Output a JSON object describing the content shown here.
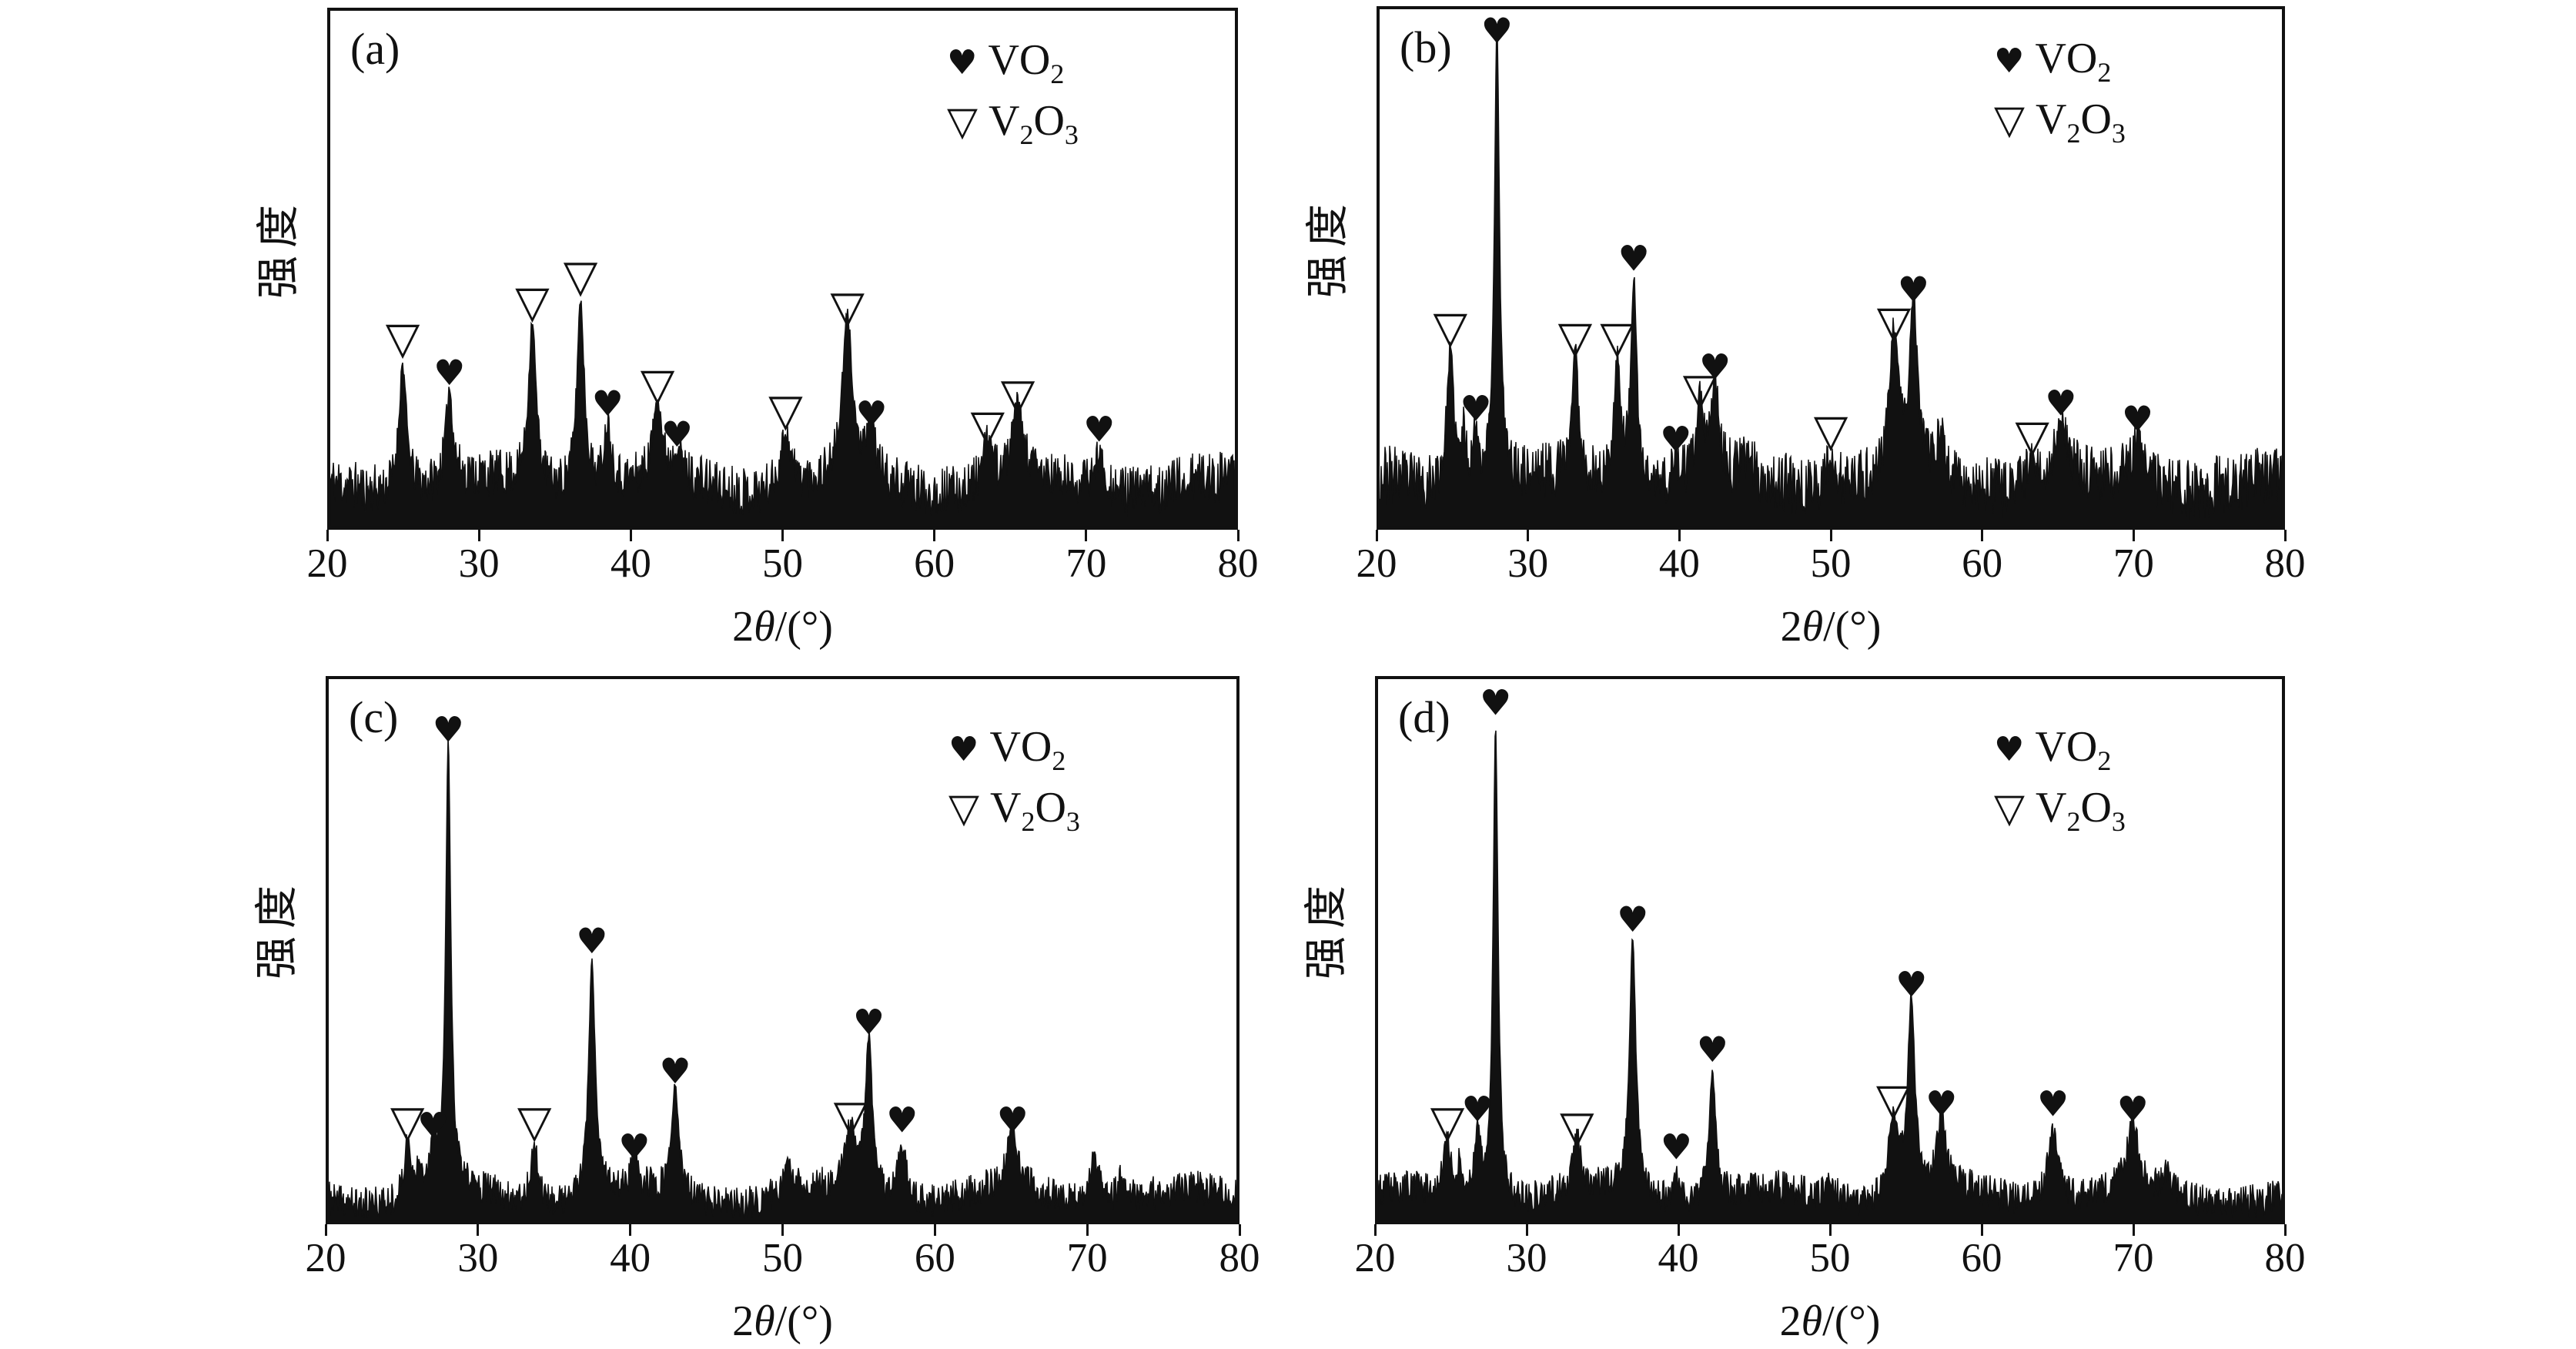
{
  "figure": {
    "background": "#ffffff",
    "ink_color": "#111111",
    "ylabel": "强度",
    "xlabel_parts": {
      "pre": "2",
      "theta": "θ",
      "post": "/(°)"
    },
    "xtick_labels": [
      "20",
      "30",
      "40",
      "50",
      "60",
      "70",
      "80"
    ],
    "legend": [
      {
        "symbol": "♥",
        "symbol_name": "heart",
        "phase": "VO2",
        "formula_parts": [
          {
            "text": "VO"
          },
          {
            "sub": "2"
          }
        ]
      },
      {
        "symbol": "▽",
        "symbol_name": "nabla",
        "phase": "V2O3",
        "formula_parts": [
          {
            "text": "V"
          },
          {
            "sub": "2"
          },
          {
            "text": "O"
          },
          {
            "sub": "3"
          }
        ]
      }
    ]
  },
  "chart_data": [
    {
      "type": "line",
      "panel": "(a)",
      "xlabel": "2θ/(°)",
      "ylabel": "强度",
      "xlim": [
        20,
        80
      ],
      "x_ticks": [
        20,
        30,
        40,
        50,
        60,
        70,
        80
      ],
      "y_ticks": "none (arbitrary intensity units)",
      "grid": false,
      "legend_position": "top-right inside",
      "noise": {
        "baseline": 0.08,
        "amplitude": 0.05,
        "seed": 11
      },
      "peaks": [
        {
          "two_theta": 24.8,
          "marker": "nabla",
          "phase": "V2O3",
          "rel_height": 0.33,
          "width_deg": 0.3
        },
        {
          "two_theta": 27.9,
          "marker": "heart",
          "phase": "VO2",
          "rel_height": 0.26,
          "width_deg": 0.28
        },
        {
          "two_theta": 33.4,
          "marker": "nabla",
          "phase": "V2O3",
          "rel_height": 0.4,
          "width_deg": 0.3
        },
        {
          "two_theta": 36.6,
          "marker": "nabla",
          "phase": "V2O3",
          "rel_height": 0.45,
          "width_deg": 0.3
        },
        {
          "two_theta": 38.4,
          "marker": "heart",
          "phase": "VO2",
          "rel_height": 0.2,
          "width_deg": 0.3
        },
        {
          "two_theta": 41.7,
          "marker": "nabla",
          "phase": "V2O3",
          "rel_height": 0.24,
          "width_deg": 0.32
        },
        {
          "two_theta": 43.0,
          "marker": "heart",
          "phase": "VO2",
          "rel_height": 0.14,
          "width_deg": 0.3
        },
        {
          "two_theta": 50.2,
          "marker": "nabla",
          "phase": "V2O3",
          "rel_height": 0.19,
          "width_deg": 0.42
        },
        {
          "two_theta": 54.3,
          "marker": "nabla",
          "phase": "V2O3",
          "rel_height": 0.39,
          "width_deg": 0.4
        },
        {
          "two_theta": 55.9,
          "marker": "heart",
          "phase": "VO2",
          "rel_height": 0.18,
          "width_deg": 0.32
        },
        {
          "two_theta": 63.6,
          "marker": "nabla",
          "phase": "V2O3",
          "rel_height": 0.16,
          "width_deg": 0.4
        },
        {
          "two_theta": 65.6,
          "marker": "nabla",
          "phase": "V2O3",
          "rel_height": 0.22,
          "width_deg": 0.42
        },
        {
          "two_theta": 71.0,
          "marker": "heart",
          "phase": "VO2",
          "rel_height": 0.15,
          "width_deg": 0.45
        }
      ]
    },
    {
      "type": "line",
      "panel": "(b)",
      "xlabel": "2θ/(°)",
      "ylabel": "强度",
      "xlim": [
        20,
        80
      ],
      "x_ticks": [
        20,
        30,
        40,
        50,
        60,
        70,
        80
      ],
      "y_ticks": "none (arbitrary intensity units)",
      "grid": false,
      "legend_position": "top-right inside",
      "noise": {
        "baseline": 0.085,
        "amplitude": 0.06,
        "seed": 23
      },
      "peaks": [
        {
          "two_theta": 24.7,
          "marker": "nabla",
          "phase": "V2O3",
          "rel_height": 0.35,
          "width_deg": 0.28
        },
        {
          "two_theta": 25.6,
          "marker": "none",
          "phase": "",
          "rel_height": 0.18,
          "width_deg": 0.18
        },
        {
          "two_theta": 26.4,
          "marker": "heart",
          "phase": "VO2",
          "rel_height": 0.19,
          "width_deg": 0.22
        },
        {
          "two_theta": 27.8,
          "marker": "heart",
          "phase": "VO2",
          "rel_height": 0.97,
          "width_deg": 0.2
        },
        {
          "two_theta": 33.0,
          "marker": "nabla",
          "phase": "V2O3",
          "rel_height": 0.33,
          "width_deg": 0.26
        },
        {
          "two_theta": 35.8,
          "marker": "nabla",
          "phase": "V2O3",
          "rel_height": 0.33,
          "width_deg": 0.26
        },
        {
          "two_theta": 36.9,
          "marker": "heart",
          "phase": "VO2",
          "rel_height": 0.48,
          "width_deg": 0.24
        },
        {
          "two_theta": 39.7,
          "marker": "heart",
          "phase": "VO2",
          "rel_height": 0.13,
          "width_deg": 0.26
        },
        {
          "two_theta": 41.3,
          "marker": "nabla",
          "phase": "V2O3",
          "rel_height": 0.23,
          "width_deg": 0.28
        },
        {
          "two_theta": 42.3,
          "marker": "heart",
          "phase": "VO2",
          "rel_height": 0.27,
          "width_deg": 0.28
        },
        {
          "two_theta": 44.5,
          "marker": "none",
          "phase": "",
          "rel_height": 0.13,
          "width_deg": 0.3
        },
        {
          "two_theta": 50.0,
          "marker": "nabla",
          "phase": "V2O3",
          "rel_height": 0.15,
          "width_deg": 0.36
        },
        {
          "two_theta": 54.2,
          "marker": "nabla",
          "phase": "V2O3",
          "rel_height": 0.36,
          "width_deg": 0.36
        },
        {
          "two_theta": 55.5,
          "marker": "heart",
          "phase": "VO2",
          "rel_height": 0.42,
          "width_deg": 0.3
        },
        {
          "two_theta": 57.3,
          "marker": "none",
          "phase": "",
          "rel_height": 0.16,
          "width_deg": 0.35
        },
        {
          "two_theta": 63.4,
          "marker": "nabla",
          "phase": "V2O3",
          "rel_height": 0.14,
          "width_deg": 0.36
        },
        {
          "two_theta": 65.3,
          "marker": "heart",
          "phase": "VO2",
          "rel_height": 0.2,
          "width_deg": 0.46
        },
        {
          "two_theta": 70.4,
          "marker": "heart",
          "phase": "VO2",
          "rel_height": 0.17,
          "width_deg": 0.45
        }
      ]
    },
    {
      "type": "line",
      "panel": "(c)",
      "xlabel": "2θ/(°)",
      "ylabel": "强度",
      "xlim": [
        20,
        80
      ],
      "x_ticks": [
        20,
        30,
        40,
        50,
        60,
        70,
        80
      ],
      "y_ticks": "none (arbitrary intensity units)",
      "grid": false,
      "legend_position": "top-right inside",
      "noise": {
        "baseline": 0.045,
        "amplitude": 0.032,
        "seed": 37
      },
      "peaks": [
        {
          "two_theta": 25.2,
          "marker": "nabla",
          "phase": "V2O3",
          "rel_height": 0.15,
          "width_deg": 0.22
        },
        {
          "two_theta": 26.0,
          "marker": "none",
          "phase": "",
          "rel_height": 0.1,
          "width_deg": 0.18
        },
        {
          "two_theta": 26.9,
          "marker": "heart",
          "phase": "VO2",
          "rel_height": 0.14,
          "width_deg": 0.22
        },
        {
          "two_theta": 27.9,
          "marker": "heart",
          "phase": "VO2",
          "rel_height": 0.87,
          "width_deg": 0.2
        },
        {
          "two_theta": 33.6,
          "marker": "nabla",
          "phase": "V2O3",
          "rel_height": 0.15,
          "width_deg": 0.3
        },
        {
          "two_theta": 37.4,
          "marker": "heart",
          "phase": "VO2",
          "rel_height": 0.48,
          "width_deg": 0.26
        },
        {
          "two_theta": 40.2,
          "marker": "heart",
          "phase": "VO2",
          "rel_height": 0.1,
          "width_deg": 0.24
        },
        {
          "two_theta": 42.9,
          "marker": "heart",
          "phase": "VO2",
          "rel_height": 0.24,
          "width_deg": 0.28
        },
        {
          "two_theta": 50.3,
          "marker": "none",
          "phase": "",
          "rel_height": 0.09,
          "width_deg": 0.4
        },
        {
          "two_theta": 54.5,
          "marker": "nabla",
          "phase": "V2O3",
          "rel_height": 0.16,
          "width_deg": 0.4
        },
        {
          "two_theta": 55.7,
          "marker": "heart",
          "phase": "VO2",
          "rel_height": 0.33,
          "width_deg": 0.28
        },
        {
          "two_theta": 57.9,
          "marker": "heart",
          "phase": "VO2",
          "rel_height": 0.15,
          "width_deg": 0.35
        },
        {
          "two_theta": 65.2,
          "marker": "heart",
          "phase": "VO2",
          "rel_height": 0.15,
          "width_deg": 0.45
        },
        {
          "two_theta": 70.6,
          "marker": "none",
          "phase": "",
          "rel_height": 0.13,
          "width_deg": 0.4
        },
        {
          "two_theta": 72.4,
          "marker": "none",
          "phase": "",
          "rel_height": 0.09,
          "width_deg": 0.3
        }
      ]
    },
    {
      "type": "line",
      "panel": "(d)",
      "xlabel": "2θ/(°)",
      "ylabel": "强度",
      "xlim": [
        20,
        80
      ],
      "x_ticks": [
        20,
        30,
        40,
        50,
        60,
        70,
        80
      ],
      "y_ticks": "none (arbitrary intensity units)",
      "grid": false,
      "legend_position": "top-right inside",
      "noise": {
        "baseline": 0.045,
        "amplitude": 0.032,
        "seed": 53
      },
      "peaks": [
        {
          "two_theta": 24.6,
          "marker": "nabla",
          "phase": "V2O3",
          "rel_height": 0.15,
          "width_deg": 0.25
        },
        {
          "two_theta": 25.4,
          "marker": "none",
          "phase": "",
          "rel_height": 0.1,
          "width_deg": 0.18
        },
        {
          "two_theta": 26.6,
          "marker": "heart",
          "phase": "VO2",
          "rel_height": 0.17,
          "width_deg": 0.25
        },
        {
          "two_theta": 27.8,
          "marker": "heart",
          "phase": "VO2",
          "rel_height": 0.92,
          "width_deg": 0.2
        },
        {
          "two_theta": 33.2,
          "marker": "nabla",
          "phase": "V2O3",
          "rel_height": 0.14,
          "width_deg": 0.3
        },
        {
          "two_theta": 36.9,
          "marker": "heart",
          "phase": "VO2",
          "rel_height": 0.52,
          "width_deg": 0.26
        },
        {
          "two_theta": 39.8,
          "marker": "heart",
          "phase": "VO2",
          "rel_height": 0.1,
          "width_deg": 0.24
        },
        {
          "two_theta": 42.2,
          "marker": "heart",
          "phase": "VO2",
          "rel_height": 0.28,
          "width_deg": 0.28
        },
        {
          "two_theta": 50.1,
          "marker": "none",
          "phase": "",
          "rel_height": 0.08,
          "width_deg": 0.4
        },
        {
          "two_theta": 54.2,
          "marker": "nabla",
          "phase": "V2O3",
          "rel_height": 0.19,
          "width_deg": 0.4
        },
        {
          "two_theta": 55.4,
          "marker": "heart",
          "phase": "VO2",
          "rel_height": 0.4,
          "width_deg": 0.28
        },
        {
          "two_theta": 57.4,
          "marker": "heart",
          "phase": "VO2",
          "rel_height": 0.18,
          "width_deg": 0.35
        },
        {
          "two_theta": 64.8,
          "marker": "heart",
          "phase": "VO2",
          "rel_height": 0.18,
          "width_deg": 0.45
        },
        {
          "two_theta": 70.1,
          "marker": "heart",
          "phase": "VO2",
          "rel_height": 0.17,
          "width_deg": 0.45
        },
        {
          "two_theta": 72.4,
          "marker": "none",
          "phase": "",
          "rel_height": 0.08,
          "width_deg": 0.3
        }
      ]
    }
  ]
}
